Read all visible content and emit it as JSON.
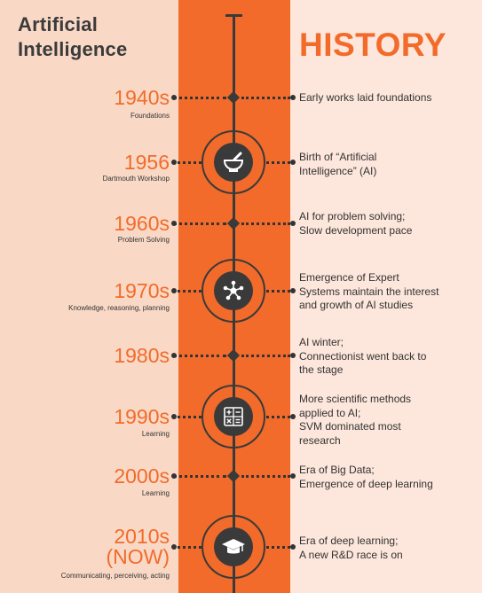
{
  "title_left": [
    "Artificial",
    "Intelligence"
  ],
  "title_right": "HISTORY",
  "colors": {
    "accent": "#f26b2a",
    "dark": "#3a3a3a",
    "left_bg": "#f9d9c6",
    "right_bg": "#fde6db"
  },
  "events": [
    {
      "year": "1940s",
      "subtitle": "Foundations",
      "description": [
        "Early works laid foundations"
      ],
      "marker": "diamond"
    },
    {
      "year": "1956",
      "subtitle": "Dartmouth Workshop",
      "description": [
        "Birth of “Artificial",
        "Intelligence” (AI)"
      ],
      "marker": "icon",
      "icon": "mortar-pestle-icon"
    },
    {
      "year": "1960s",
      "subtitle": "Problem Solving",
      "description": [
        "AI for problem solving;",
        "Slow development pace"
      ],
      "marker": "diamond"
    },
    {
      "year": "1970s",
      "subtitle": "Knowledge, reasoning, planning",
      "description": [
        "Emergence of Expert",
        "Systems maintain the interest",
        "and growth of AI studies"
      ],
      "marker": "icon",
      "icon": "network-icon"
    },
    {
      "year": "1980s",
      "subtitle": "",
      "description": [
        "AI winter;",
        "Connectionist went back to",
        "the stage"
      ],
      "marker": "diamond"
    },
    {
      "year": "1990s",
      "subtitle": "Learning",
      "description": [
        "More scientific methods",
        "applied to AI;",
        "SVM dominated most",
        "research"
      ],
      "marker": "icon",
      "icon": "calculator-icon"
    },
    {
      "year": "2000s",
      "subtitle": "Learning",
      "description": [
        "Era of Big Data;",
        "Emergence of deep learning"
      ],
      "marker": "diamond"
    },
    {
      "year_lines": [
        "2010s",
        "(NOW)"
      ],
      "subtitle": "Communicating, perceiving, acting",
      "description": [
        "Era of deep learning;",
        "A new R&D race is on"
      ],
      "marker": "icon",
      "icon": "graduation-cap-icon"
    }
  ]
}
